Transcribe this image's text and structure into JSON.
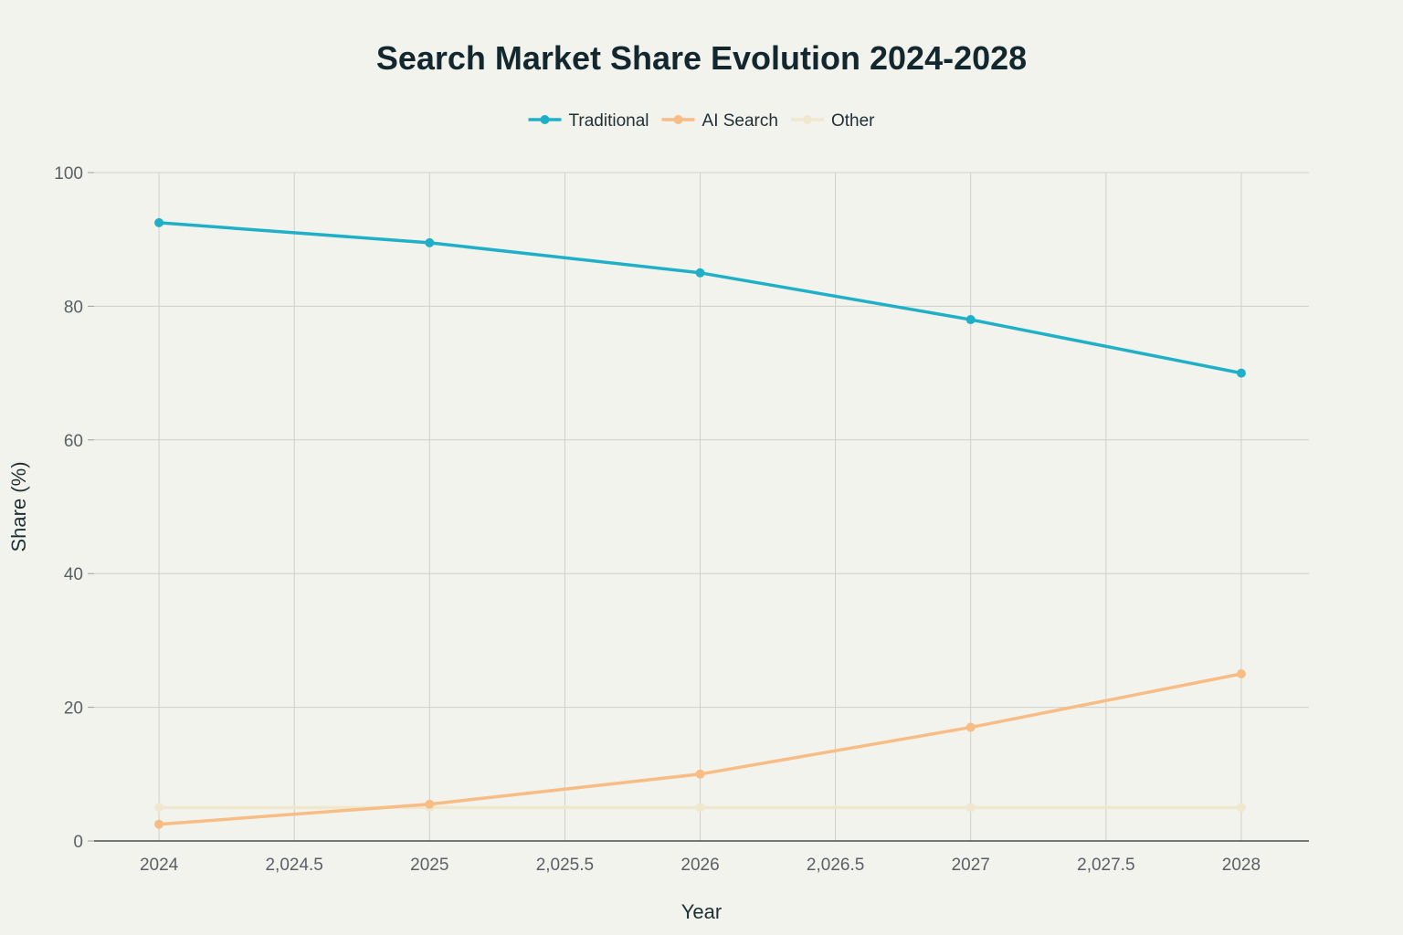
{
  "chart_data": {
    "type": "line",
    "title": "Search Market Share Evolution 2024-2028",
    "xlabel": "Year",
    "ylabel": "Share (%)",
    "x": [
      2024,
      2025,
      2026,
      2027,
      2028
    ],
    "xlim": [
      2023.76,
      2028.25
    ],
    "ylim": [
      0,
      100
    ],
    "x_ticks": [
      2024,
      2024.5,
      2025,
      2025.5,
      2026,
      2026.5,
      2027,
      2027.5,
      2028
    ],
    "x_tick_labels": [
      "2024",
      "2,024.5",
      "2025",
      "2,025.5",
      "2026",
      "2,026.5",
      "2027",
      "2,027.5",
      "2028"
    ],
    "y_ticks": [
      0,
      20,
      40,
      60,
      80,
      100
    ],
    "y_tick_labels": [
      "0",
      "20",
      "40",
      "60",
      "80",
      "100"
    ],
    "grid": true,
    "legend_position": "top-center",
    "series": [
      {
        "name": "Traditional",
        "color": "#1fb0c8",
        "values": [
          92.5,
          89.5,
          85,
          78,
          70
        ]
      },
      {
        "name": "AI Search",
        "color": "#f7bd85",
        "values": [
          2.5,
          5.5,
          10,
          17,
          25
        ]
      },
      {
        "name": "Other",
        "color": "#efe8cf",
        "values": [
          5,
          5,
          5,
          5,
          5
        ]
      }
    ]
  }
}
